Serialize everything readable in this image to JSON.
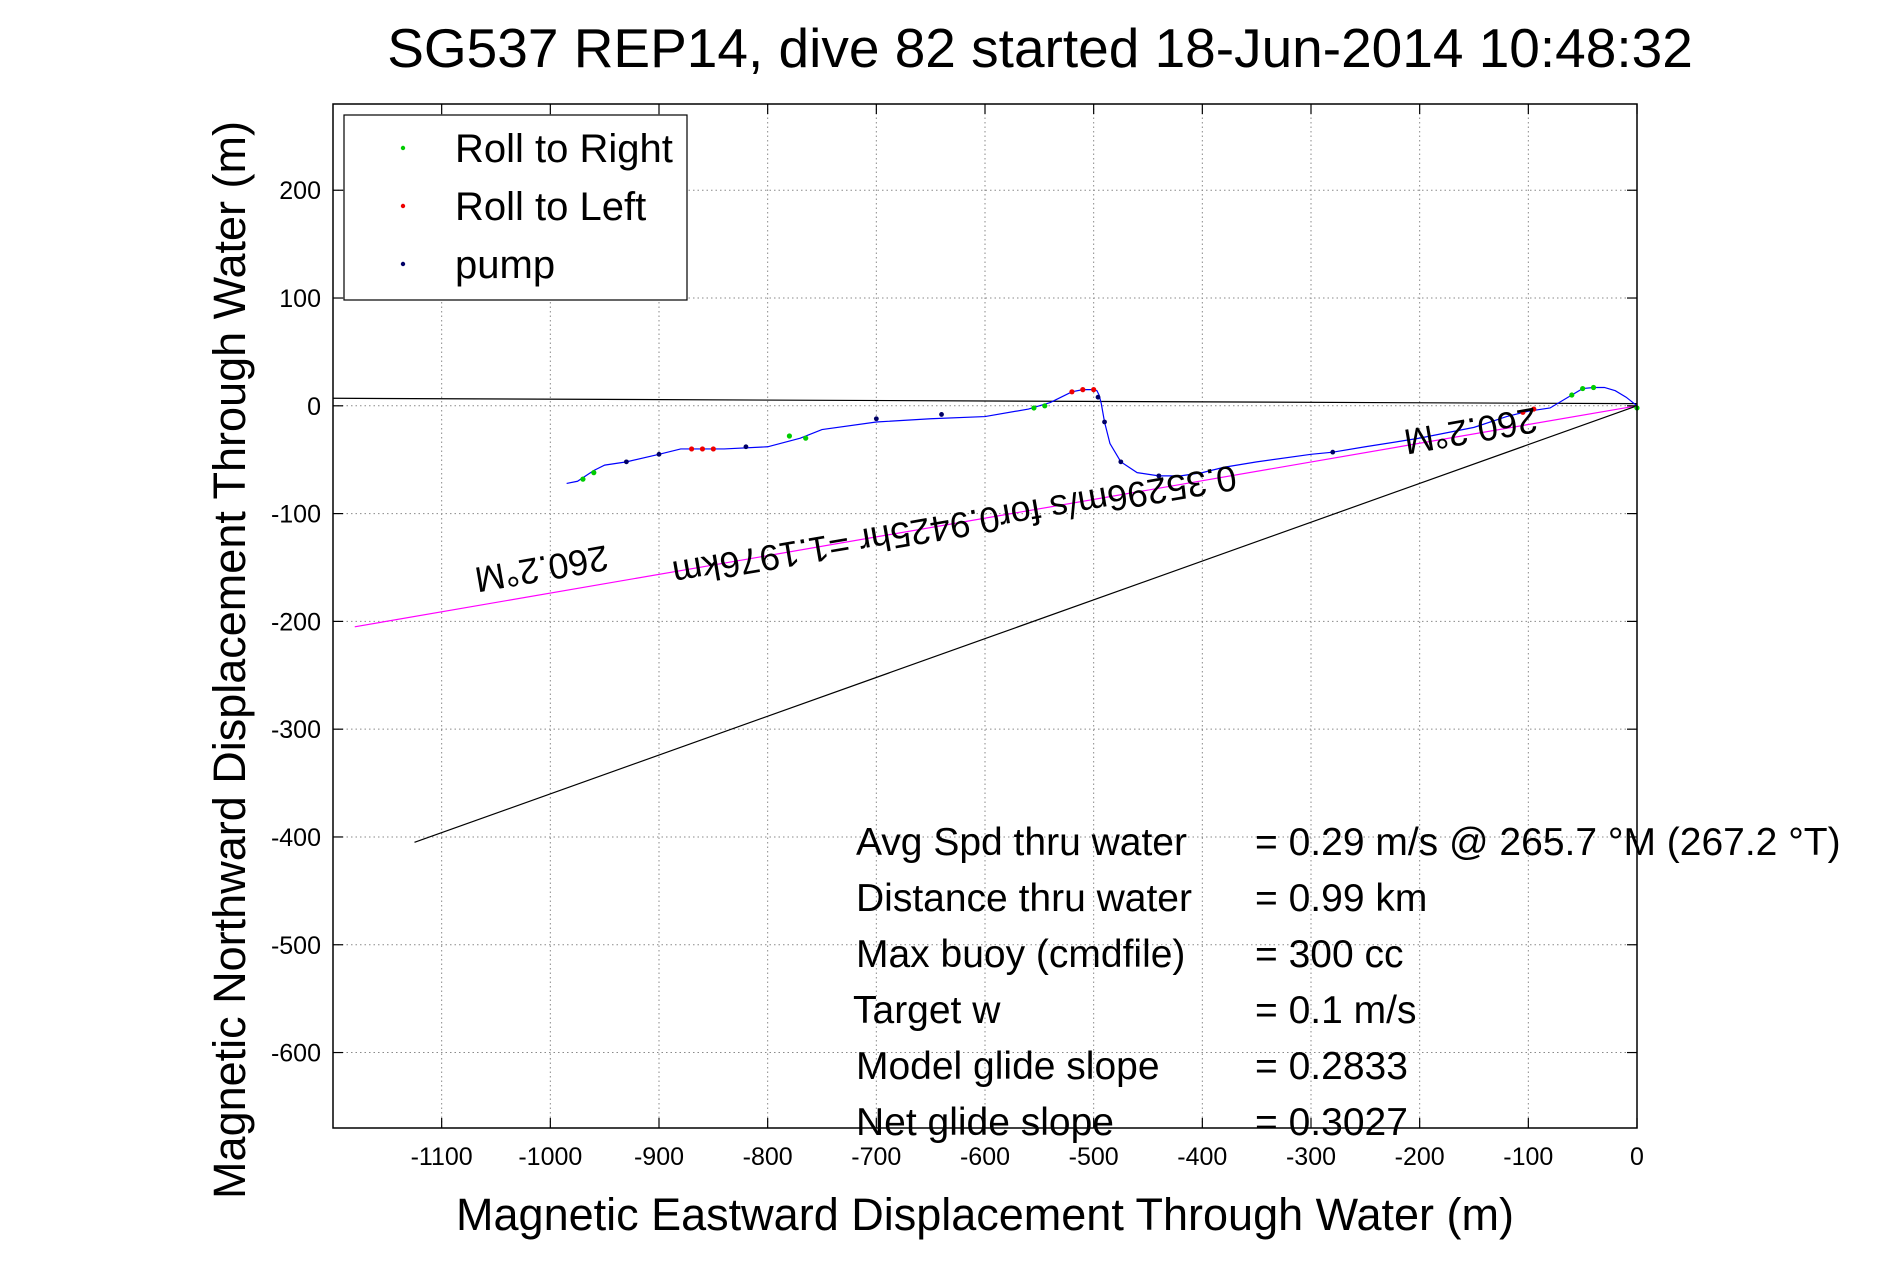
{
  "chart_data": {
    "type": "line",
    "title": "SG537 REP14, dive 82 started 18-Jun-2014 10:48:32",
    "xlabel": "Magnetic Eastward Displacement Through Water (m)",
    "ylabel": "Magnetic Northward Displacement Through Water (m)",
    "xlim": [
      -1200,
      0
    ],
    "ylim": [
      -670,
      280
    ],
    "xticks": [
      -1100,
      -1000,
      -900,
      -800,
      -700,
      -600,
      -500,
      -400,
      -300,
      -200,
      -100,
      0
    ],
    "xtick_labels": [
      "-1100",
      "-1000",
      "-900",
      "-800",
      "-700",
      "-600",
      "-500",
      "-400",
      "-300",
      "-200",
      "-100",
      "0"
    ],
    "yticks": [
      200,
      100,
      0,
      -100,
      -200,
      -300,
      -400,
      -500,
      -600
    ],
    "ytick_labels": [
      "200",
      "100",
      "0",
      "-100",
      "-200",
      "-300",
      "-400",
      "-500",
      "-600"
    ],
    "grid": true,
    "legend_position": "top-left",
    "legend": [
      {
        "label": "Roll to Right",
        "color": "#00cc00"
      },
      {
        "label": "Roll to Left",
        "color": "#ee0000"
      },
      {
        "label": "pump",
        "color": "#000066"
      }
    ],
    "track": {
      "color": "#0000ff",
      "x": [
        0,
        -10,
        -20,
        -30,
        -40,
        -50,
        -60,
        -80,
        -100,
        -120,
        -150,
        -200,
        -250,
        -280,
        -300,
        -350,
        -380,
        -400,
        -420,
        -440,
        -460,
        -475,
        -485,
        -490,
        -493,
        -495,
        -497,
        -500,
        -510,
        -520,
        -530,
        -540,
        -550,
        -560,
        -600,
        -650,
        -700,
        -750,
        -770,
        -800,
        -840,
        -860,
        -880,
        -900,
        -930,
        -950,
        -960,
        -975,
        -985
      ],
      "y": [
        0,
        8,
        14,
        17,
        17,
        16,
        10,
        -2,
        -5,
        -10,
        -20,
        -30,
        -38,
        -43,
        -45,
        -52,
        -57,
        -62,
        -65,
        -65,
        -62,
        -52,
        -35,
        -15,
        2,
        10,
        14,
        15,
        15,
        13,
        8,
        3,
        0,
        -3,
        -10,
        -12,
        -15,
        -22,
        -30,
        -38,
        -40,
        -40,
        -40,
        -45,
        -52,
        -55,
        -60,
        -70,
        -72
      ]
    },
    "roll_right": [
      [
        0,
        -2
      ],
      [
        -40,
        17
      ],
      [
        -50,
        16
      ],
      [
        -60,
        10
      ],
      [
        -545,
        0
      ],
      [
        -555,
        -2
      ],
      [
        -765,
        -30
      ],
      [
        -780,
        -28
      ],
      [
        -960,
        -62
      ],
      [
        -970,
        -68
      ]
    ],
    "roll_left": [
      [
        -95,
        -3
      ],
      [
        -105,
        -6
      ],
      [
        -500,
        15
      ],
      [
        -510,
        15
      ],
      [
        -520,
        13
      ],
      [
        -850,
        -40
      ],
      [
        -860,
        -40
      ],
      [
        -870,
        -40
      ]
    ],
    "pump": [
      [
        -280,
        -43
      ],
      [
        -440,
        -65
      ],
      [
        -475,
        -52
      ],
      [
        -490,
        -15
      ],
      [
        -496,
        8
      ],
      [
        -640,
        -8
      ],
      [
        -700,
        -12
      ],
      [
        -820,
        -38
      ],
      [
        -900,
        -45
      ],
      [
        -930,
        -52
      ]
    ],
    "lines": [
      {
        "color": "#ff00ff",
        "x": [
          0,
          -1180
        ],
        "y": [
          0,
          -205
        ]
      },
      {
        "color": "#000000",
        "x": [
          0,
          -1125
        ],
        "y": [
          0,
          -405
        ]
      },
      {
        "color": "#000000",
        "x": [
          -1200,
          0
        ],
        "y": [
          7,
          2
        ]
      }
    ],
    "annotations": [
      {
        "text": "260.2°M",
        "x": -1010,
        "y": -140
      },
      {
        "text": "0.35296m/s for0.9425hr =1.1976km",
        "x": -630,
        "y": -100
      },
      {
        "text": "260.2°M",
        "x": -155,
        "y": -12
      }
    ],
    "stats": [
      {
        "label": "Avg Spd thru water",
        "value": "=  0.29 m/s @ 265.7 °M (267.2 °T)"
      },
      {
        "label": "Distance thru water",
        "value": "=  0.99 km"
      },
      {
        "label": "Max buoy (cmdfile)",
        "value": "= 300 cc"
      },
      {
        "label": "Target w",
        "value": "= 0.1 m/s"
      },
      {
        "label": "Model glide slope",
        "value": "= 0.2833"
      },
      {
        "label": "Net glide slope",
        "value": "= 0.3027"
      }
    ]
  }
}
